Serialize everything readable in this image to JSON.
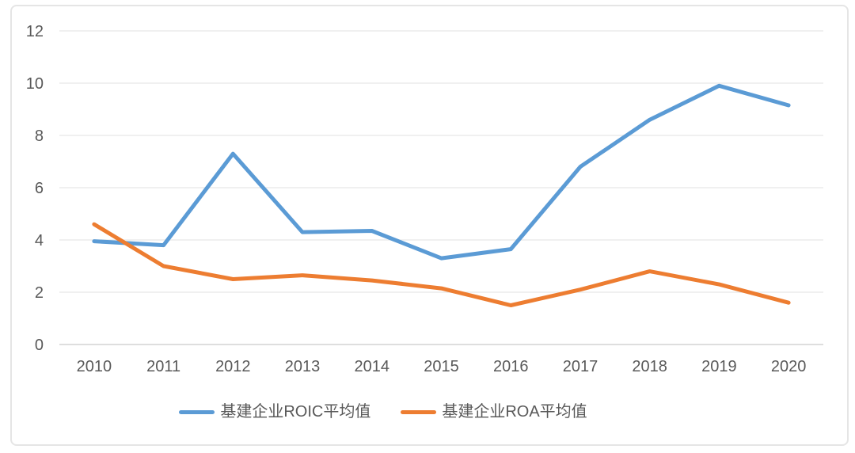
{
  "chart_data": {
    "type": "line",
    "title": "",
    "xlabel": "",
    "ylabel": "",
    "categories": [
      "2010",
      "2011",
      "2012",
      "2013",
      "2014",
      "2015",
      "2016",
      "2017",
      "2018",
      "2019",
      "2020"
    ],
    "series": [
      {
        "id": "roic",
        "name": "基建企业ROIC平均值",
        "color": "#5B9BD5",
        "values": [
          3.95,
          3.8,
          7.3,
          4.3,
          4.35,
          3.3,
          3.65,
          6.8,
          8.6,
          9.9,
          9.15
        ]
      },
      {
        "id": "roa",
        "name": "基建企业ROA平均值",
        "color": "#ED7D31",
        "values": [
          4.6,
          3.0,
          2.5,
          2.65,
          2.45,
          2.15,
          1.5,
          2.1,
          2.8,
          2.3,
          1.6
        ]
      }
    ],
    "ylim": [
      0,
      12
    ],
    "yticks": [
      0,
      2,
      4,
      6,
      8,
      10,
      12
    ],
    "grid": true,
    "legend_position": "bottom",
    "grid_color": "#e7e7e7",
    "axis_line_color": "#d4d4d4",
    "label_color": "#595959"
  }
}
